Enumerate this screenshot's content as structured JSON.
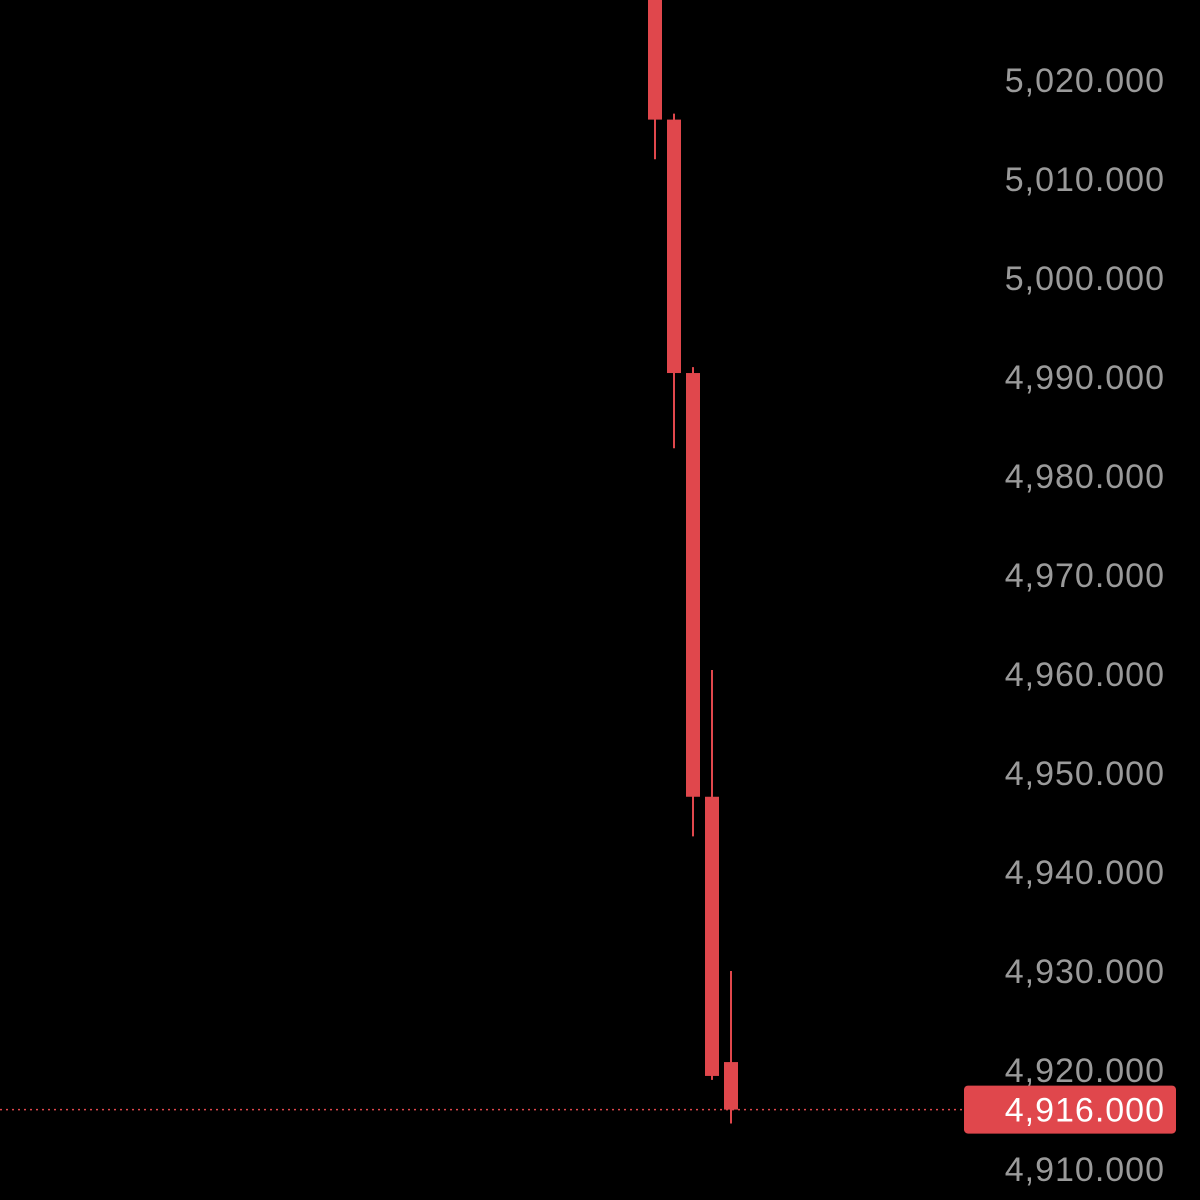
{
  "chart_data": {
    "type": "candlestick",
    "title": "",
    "xlabel": "",
    "ylabel": "",
    "ylim": [
      4907,
      5028
    ],
    "grid": false,
    "colors": {
      "background": "#000000",
      "down": "#e0474c",
      "axis_text": "#9a9a9a",
      "current_price_label_bg": "#e0474c",
      "current_price_label_text": "#ffffff"
    },
    "y_ticks": [
      "5,020.000",
      "5,010.000",
      "5,000.000",
      "4,990.000",
      "4,980.000",
      "4,970.000",
      "4,960.000",
      "4,950.000",
      "4,940.000",
      "4,930.000",
      "4,920.000",
      "4,910.000"
    ],
    "y_tick_values": [
      5020,
      5010,
      5000,
      4990,
      4980,
      4970,
      4960,
      4950,
      4940,
      4930,
      4920,
      4910
    ],
    "candles": [
      {
        "open": 5032.0,
        "high": 5034.0,
        "low": 5012.0,
        "close": 5016.0
      },
      {
        "open": 5016.0,
        "high": 5016.6,
        "low": 4982.8,
        "close": 4990.4
      },
      {
        "open": 4990.4,
        "high": 4991.0,
        "low": 4943.6,
        "close": 4947.6
      },
      {
        "open": 4947.6,
        "high": 4960.4,
        "low": 4919.0,
        "close": 4919.4
      },
      {
        "open": 4920.8,
        "high": 4930.0,
        "low": 4914.6,
        "close": 4916.0
      }
    ],
    "current_price": 4916.0,
    "current_price_label": "4,916.000"
  }
}
